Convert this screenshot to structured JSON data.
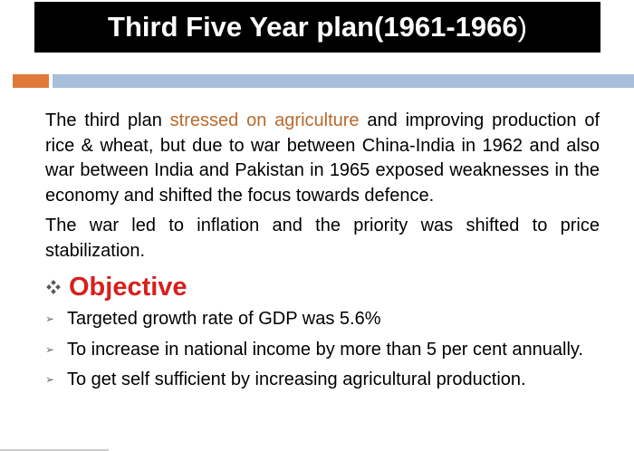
{
  "title": {
    "main": "Third Five Year plan(1961-1966",
    "close_paren": ")"
  },
  "body": {
    "para1_part1": "The third plan ",
    "para1_highlight": "stressed on agriculture",
    "para1_part2": " and improving production of rice & wheat, but due to war between China-India in 1962 and also war between India and Pakistan in 1965 exposed weaknesses in the economy and shifted the focus towards defence.",
    "para2": "The war led to inflation and the priority was shifted to price stabilization."
  },
  "objective": {
    "heading": "Objective",
    "items": [
      "Targeted growth rate of  GDP was 5.6%",
      "To increase in national income by more than 5 per cent annually.",
      "To get self sufficient by increasing agricultural production."
    ]
  },
  "colors": {
    "title_bg": "#000000",
    "accent_orange": "#E07A3A",
    "accent_blue": "#A7BFDA",
    "highlight_text": "#B86A2C",
    "objective_red": "#D6201C"
  },
  "icons": {
    "objective_bullet": "diamond-cluster-icon",
    "list_bullet": "arrow-bullet-icon"
  }
}
